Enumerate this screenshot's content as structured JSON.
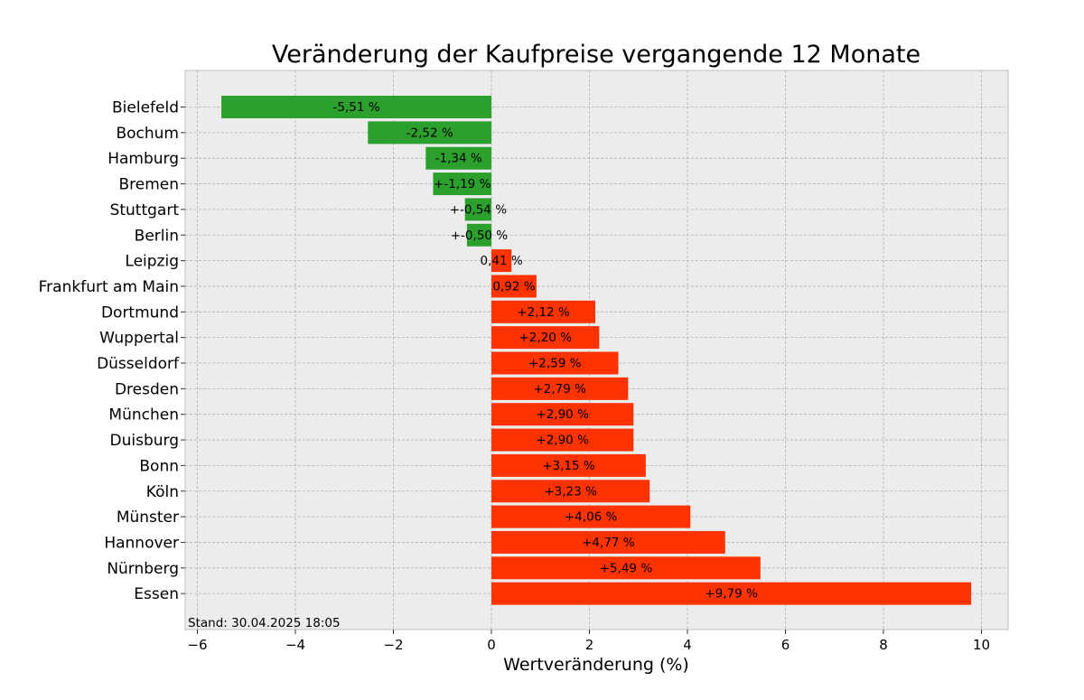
{
  "chart_data": {
    "type": "bar",
    "orientation": "horizontal",
    "title": "Veränderung der Kaufpreise vergangende 12 Monate",
    "xlabel": "Wertveränderung (%)",
    "ylabel": "",
    "xlim": [
      -6.2,
      10.55
    ],
    "xticks": [
      -6,
      -4,
      -2,
      0,
      2,
      4,
      6,
      8,
      10
    ],
    "xtick_labels": [
      "−6",
      "−4",
      "−2",
      "0",
      "2",
      "4",
      "6",
      "8",
      "10"
    ],
    "grid": true,
    "categories": [
      "Bielefeld",
      "Bochum",
      "Hamburg",
      "Bremen",
      "Stuttgart",
      "Berlin",
      "Leipzig",
      "Frankfurt am Main",
      "Dortmund",
      "Wuppertal",
      "Düsseldorf",
      "Dresden",
      "München",
      "Duisburg",
      "Bonn",
      "Köln",
      "Münster",
      "Hannover",
      "Nürnberg",
      "Essen"
    ],
    "values": [
      -5.51,
      -2.52,
      -1.34,
      -1.19,
      -0.54,
      -0.5,
      0.41,
      0.92,
      2.12,
      2.2,
      2.59,
      2.79,
      2.9,
      2.9,
      3.15,
      3.23,
      4.06,
      4.77,
      5.49,
      9.79
    ],
    "value_labels": [
      "-5,51 %",
      "-2,52 %",
      "-1,34 %",
      "+-1,19 %",
      "+-0,54 %",
      "+-0,50 %",
      "0,41 %",
      "0,92 %",
      "+2,12 %",
      "+2,20 %",
      "+2,59 %",
      "+2,79 %",
      "+2,90 %",
      "+2,90 %",
      "+3,15 %",
      "+3,23 %",
      "+4,06 %",
      "+4,77 %",
      "+5,49 %",
      "+9,79 %"
    ],
    "colors": {
      "negative": "#2ca02c",
      "positive": "#ff3300",
      "plot_bg": "#ececec",
      "grid": "#b0b0b0"
    },
    "annotation": "Stand: 30.04.2025 18:05"
  }
}
